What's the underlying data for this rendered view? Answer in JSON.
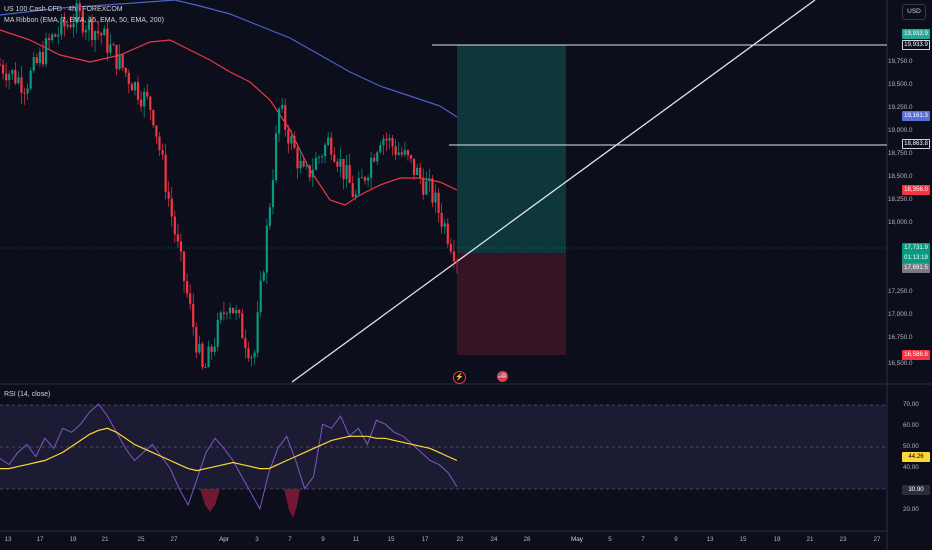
{
  "header": {
    "symbol_line": "US 100 Cash CFD · 4h · FOREXCOM",
    "indicator_line": "MA Ribbon (EMA, 7, EMA, 15, EMA, 50, EMA, 200)",
    "currency": "USD"
  },
  "price_axis": {
    "labels": [
      "19,750.0",
      "19,500.0",
      "19,250.0",
      "19,000.0",
      "18,750.0",
      "18,500.0",
      "18,250.0",
      "18,000.0",
      "17,250.0",
      "17,000.0",
      "16,750.0",
      "16,500.0"
    ]
  },
  "price_tags": {
    "target": {
      "value": "19,933.9",
      "color": "#26a69a"
    },
    "target_line": {
      "value": "19,933.9"
    },
    "ema200": {
      "value": "19,161.3",
      "color": "#5b6fd6"
    },
    "level": {
      "value": "18,863.8"
    },
    "ema50": {
      "value": "18,356.0",
      "color": "#f23645"
    },
    "last": {
      "value": "17,731.9",
      "countdown": "01:13:19",
      "color": "#089981"
    },
    "entry": {
      "value": "17,691.5",
      "color": "#787b86"
    },
    "stop": {
      "value": "16,588.8",
      "color": "#f23645"
    }
  },
  "rsi": {
    "title": "RSI (14, close)",
    "axis_labels": [
      "70.00",
      "60.00",
      "50.00",
      "40.00",
      "20.00"
    ],
    "value": "30.90",
    "ma_value": "44.26",
    "value_color": "#7e57c2",
    "ma_color": "#fdd835"
  },
  "time_axis": {
    "labels": [
      "13",
      "17",
      "19",
      "21",
      "25",
      "27",
      "Apr",
      "3",
      "7",
      "9",
      "11",
      "15",
      "17",
      "22",
      "24",
      "28",
      "May",
      "5",
      "7",
      "9",
      "13",
      "15",
      "19",
      "21",
      "23",
      "27"
    ]
  },
  "events": {
    "flash": "⚡",
    "flag": "🇺🇸"
  },
  "chart_data": {
    "type": "line",
    "title": "US 100 Cash CFD · 4h · FOREXCOM",
    "series": [
      {
        "name": "US 100 Cash CFD",
        "values": [
          19650,
          19450,
          19900,
          20150,
          19950,
          19550,
          19200,
          17800,
          16520,
          17300,
          16680,
          19200,
          18500,
          18900,
          18300,
          18950,
          18700,
          18350,
          17720
        ]
      },
      {
        "name": "EMA 200",
        "values": [
          20300,
          20200,
          20120,
          20000,
          19880,
          19760,
          19650,
          19500,
          19400,
          19330,
          19250,
          19161
        ]
      },
      {
        "name": "EMA 50",
        "values": [
          19900,
          19800,
          19650,
          19550,
          19400,
          19100,
          18600,
          18000,
          17950,
          18300,
          18500,
          18580,
          18356
        ]
      }
    ],
    "ylim": [
      16450,
      20300
    ],
    "levels": {
      "target": 19933.9,
      "resistance": 18863.8,
      "entry": 17691.5,
      "stop": 16588.8
    },
    "rsi_ylim": [
      15,
      75
    ]
  }
}
